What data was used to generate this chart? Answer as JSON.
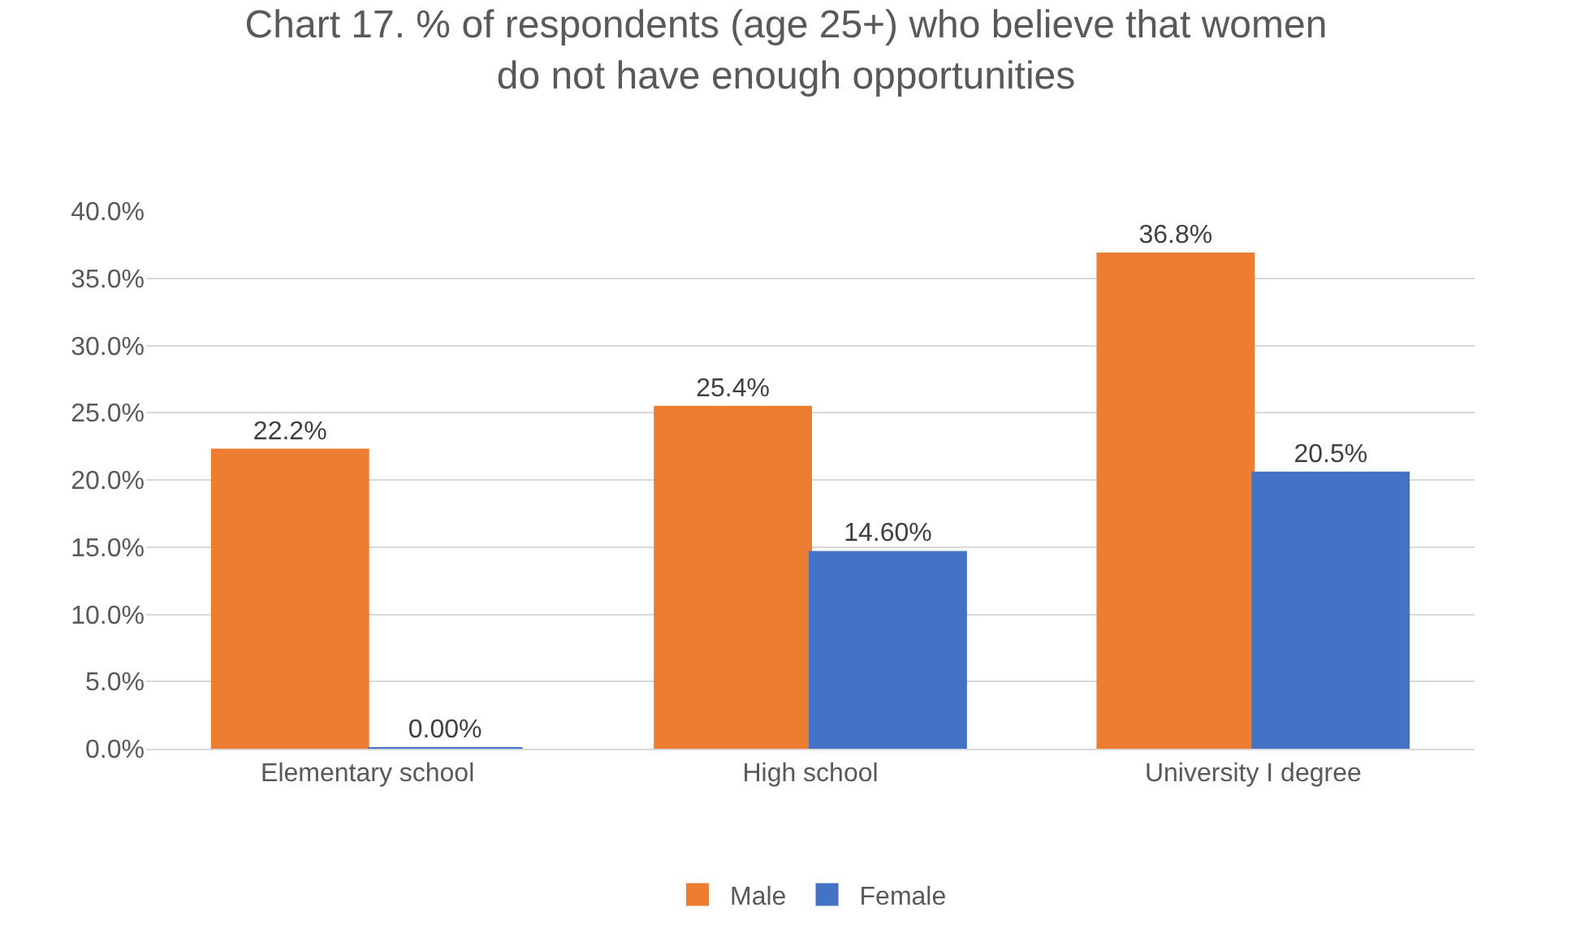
{
  "chart_data": {
    "type": "bar",
    "title": "Chart 17. % of respondents (age 25+) who believe that women\ndo not have enough opportunities",
    "categories": [
      "Elementary school",
      "High school",
      "University I degree"
    ],
    "series": [
      {
        "name": "Male",
        "color": "#ed7d31",
        "values": [
          22.2,
          25.4,
          36.8
        ],
        "value_labels": [
          "22.2%",
          "25.4%",
          "36.8%"
        ]
      },
      {
        "name": "Female",
        "color": "#4472c4",
        "values": [
          0.0,
          14.6,
          20.5
        ],
        "value_labels": [
          "0.00%",
          "14.60%",
          "20.5%"
        ]
      }
    ],
    "ylim": [
      0,
      40
    ],
    "yticks": [
      {
        "value": 0,
        "label": "0.0%"
      },
      {
        "value": 5,
        "label": "5.0%"
      },
      {
        "value": 10,
        "label": "10.0%"
      },
      {
        "value": 15,
        "label": "15.0%"
      },
      {
        "value": 20,
        "label": "20.0%"
      },
      {
        "value": 25,
        "label": "25.0%"
      },
      {
        "value": 30,
        "label": "30.0%"
      },
      {
        "value": 35,
        "label": "35.0%"
      },
      {
        "value": 40,
        "label": "40.0%"
      }
    ],
    "grid": "y",
    "legend": "bottom"
  }
}
